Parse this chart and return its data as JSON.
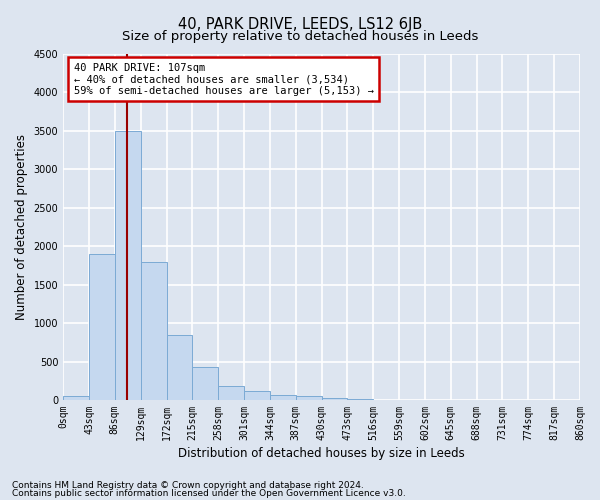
{
  "title": "40, PARK DRIVE, LEEDS, LS12 6JB",
  "subtitle": "Size of property relative to detached houses in Leeds",
  "xlabel": "Distribution of detached houses by size in Leeds",
  "ylabel": "Number of detached properties",
  "bin_labels": [
    "0sqm",
    "43sqm",
    "86sqm",
    "129sqm",
    "172sqm",
    "215sqm",
    "258sqm",
    "301sqm",
    "344sqm",
    "387sqm",
    "430sqm",
    "473sqm",
    "516sqm",
    "559sqm",
    "602sqm",
    "645sqm",
    "688sqm",
    "731sqm",
    "774sqm",
    "817sqm",
    "860sqm"
  ],
  "bar_values": [
    50,
    1900,
    3500,
    1800,
    850,
    430,
    175,
    110,
    70,
    55,
    20,
    10,
    5,
    3,
    2,
    2,
    1,
    1,
    1,
    0
  ],
  "bar_color": "#c5d8ef",
  "bar_edge_color": "#7baad4",
  "annotation_line1": "40 PARK DRIVE: 107sqm",
  "annotation_line2": "← 40% of detached houses are smaller (3,534)",
  "annotation_line3": "59% of semi-detached houses are larger (5,153) →",
  "annotation_box_color": "#ffffff",
  "annotation_box_edge_color": "#cc0000",
  "property_line_x": 107,
  "property_line_color": "#990000",
  "ylim": [
    0,
    4500
  ],
  "bin_width": 43,
  "footnote1": "Contains HM Land Registry data © Crown copyright and database right 2024.",
  "footnote2": "Contains public sector information licensed under the Open Government Licence v3.0.",
  "background_color": "#dde5f0",
  "plot_background_color": "#dde5f0",
  "grid_color": "#ffffff",
  "title_fontsize": 10.5,
  "subtitle_fontsize": 9.5,
  "axis_label_fontsize": 8.5,
  "tick_fontsize": 7,
  "annotation_fontsize": 7.5,
  "footnote_fontsize": 6.5
}
